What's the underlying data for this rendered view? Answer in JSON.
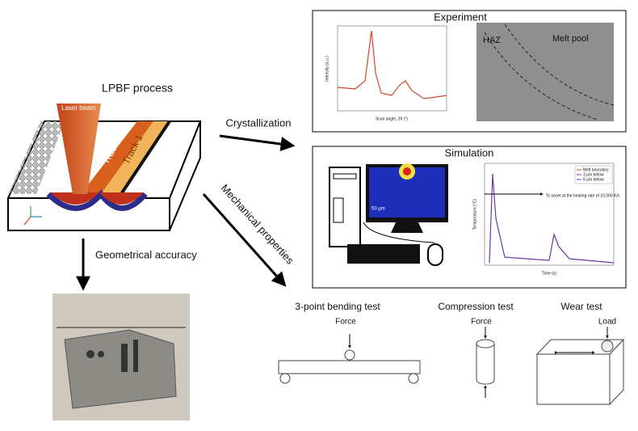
{
  "lpbf": {
    "title": "LPBF process",
    "laser": "Laser beam",
    "track2": "Track 2",
    "track1": "Track 1"
  },
  "arrows": {
    "crystallization": "Crystallization",
    "geometrical": "Geometrical accuracy",
    "mechanical": "Mechanical properties"
  },
  "experiment": {
    "title": "Experiment",
    "xrd_x_label": "Scan angle, 2θ (°)",
    "xrd_y_label": "Intensity (a.u.)",
    "haz": "HAZ",
    "melt_pool": "Melt pool"
  },
  "simulation": {
    "title": "Simulation",
    "scale": "50 μm",
    "x_label": "Time (s)",
    "y_label": "Temperature (°C)",
    "legend": [
      "Melt boundary",
      "3 μm below",
      "5 μm below"
    ],
    "annotation": "Ts onset at the heating rate of 10,000 K/s"
  },
  "tests": [
    {
      "title": "3-point bending test",
      "label": "Force"
    },
    {
      "title": "Compression test",
      "label": "Force"
    },
    {
      "title": "Wear test",
      "label": "Load"
    }
  ]
}
